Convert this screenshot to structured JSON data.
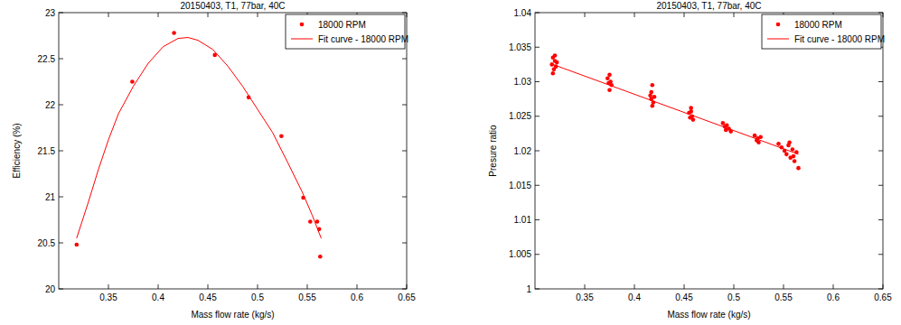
{
  "chart_data": [
    {
      "type": "scatter",
      "title": "20150403, T1, 77bar, 40C",
      "x_label": "Mass flow rate (kg/s)",
      "y_label": "Efficiency (%)",
      "xlim": [
        0.3,
        0.65
      ],
      "xticks": [
        0.35,
        0.4,
        0.45,
        0.5,
        0.55,
        0.6,
        0.65
      ],
      "ylim": [
        20,
        23
      ],
      "yticks": [
        20,
        20.5,
        21,
        21.5,
        22,
        22.5,
        23
      ],
      "legend": "upper-right",
      "series": [
        {
          "name": "18000 RPM",
          "type": "scatter",
          "marker": "dot",
          "color": "#ff0000",
          "x": [
            0.318,
            0.374,
            0.416,
            0.457,
            0.491,
            0.524,
            0.546,
            0.553,
            0.56,
            0.562,
            0.563
          ],
          "values": [
            20.48,
            22.25,
            22.78,
            22.54,
            22.08,
            21.66,
            20.99,
            20.73,
            20.73,
            20.65,
            20.35
          ]
        },
        {
          "name": "Fit curve - 18000 RPM",
          "type": "line",
          "line_style": "solid",
          "color": "#ff0000",
          "x": [
            0.318,
            0.33,
            0.34,
            0.35,
            0.36,
            0.375,
            0.39,
            0.405,
            0.42,
            0.43,
            0.44,
            0.455,
            0.47,
            0.485,
            0.5,
            0.515,
            0.53,
            0.545,
            0.555,
            0.564
          ],
          "values": [
            20.55,
            20.95,
            21.3,
            21.62,
            21.9,
            22.2,
            22.45,
            22.63,
            22.72,
            22.73,
            22.7,
            22.6,
            22.42,
            22.2,
            21.95,
            21.7,
            21.38,
            21.05,
            20.8,
            20.55
          ]
        }
      ]
    },
    {
      "type": "scatter",
      "title": "20150403, T1, 77bar, 40C",
      "x_label": "Mass flow rate (kg/s)",
      "y_label": "Presure ratio",
      "xlim": [
        0.3,
        0.65
      ],
      "xticks": [
        0.35,
        0.4,
        0.45,
        0.5,
        0.55,
        0.6,
        0.65
      ],
      "ylim": [
        1,
        1.04
      ],
      "yticks": [
        1,
        1.005,
        1.01,
        1.015,
        1.02,
        1.025,
        1.03,
        1.035,
        1.04
      ],
      "legend": "upper-right",
      "series": [
        {
          "name": "18000 RPM",
          "type": "scatter",
          "marker": "dot",
          "color": "#ff0000",
          "x": [
            0.317,
            0.318,
            0.319,
            0.32,
            0.321,
            0.322,
            0.318,
            0.32,
            0.373,
            0.374,
            0.375,
            0.376,
            0.377,
            0.375,
            0.416,
            0.417,
            0.418,
            0.419,
            0.42,
            0.418,
            0.417,
            0.455,
            0.456,
            0.457,
            0.458,
            0.459,
            0.457,
            0.489,
            0.491,
            0.492,
            0.493,
            0.495,
            0.497,
            0.521,
            0.523,
            0.524,
            0.525,
            0.527,
            0.545,
            0.548,
            0.551,
            0.553,
            0.555,
            0.557,
            0.559,
            0.561,
            0.563,
            0.565,
            0.556,
            0.56
          ],
          "values": [
            1.0325,
            1.0335,
            1.0318,
            1.033,
            1.0322,
            1.0328,
            1.0312,
            1.0338,
            1.0305,
            1.0298,
            1.031,
            1.03,
            1.0295,
            1.0288,
            1.028,
            1.0275,
            1.0295,
            1.027,
            1.0278,
            1.0265,
            1.0285,
            1.0255,
            1.0248,
            1.0262,
            1.025,
            1.0245,
            1.0257,
            1.024,
            1.0235,
            1.023,
            1.0237,
            1.0232,
            1.0228,
            1.0222,
            1.0215,
            1.0218,
            1.0212,
            1.022,
            1.021,
            1.0205,
            1.02,
            1.0195,
            1.0208,
            1.019,
            1.0202,
            1.0185,
            1.0198,
            1.0175,
            1.0212,
            1.0192
          ]
        },
        {
          "name": "Fit curve - 18000 RPM",
          "type": "line",
          "line_style": "solid",
          "color": "#ff0000",
          "x": [
            0.318,
            0.565
          ],
          "values": [
            1.0325,
            1.0195
          ]
        }
      ]
    }
  ]
}
